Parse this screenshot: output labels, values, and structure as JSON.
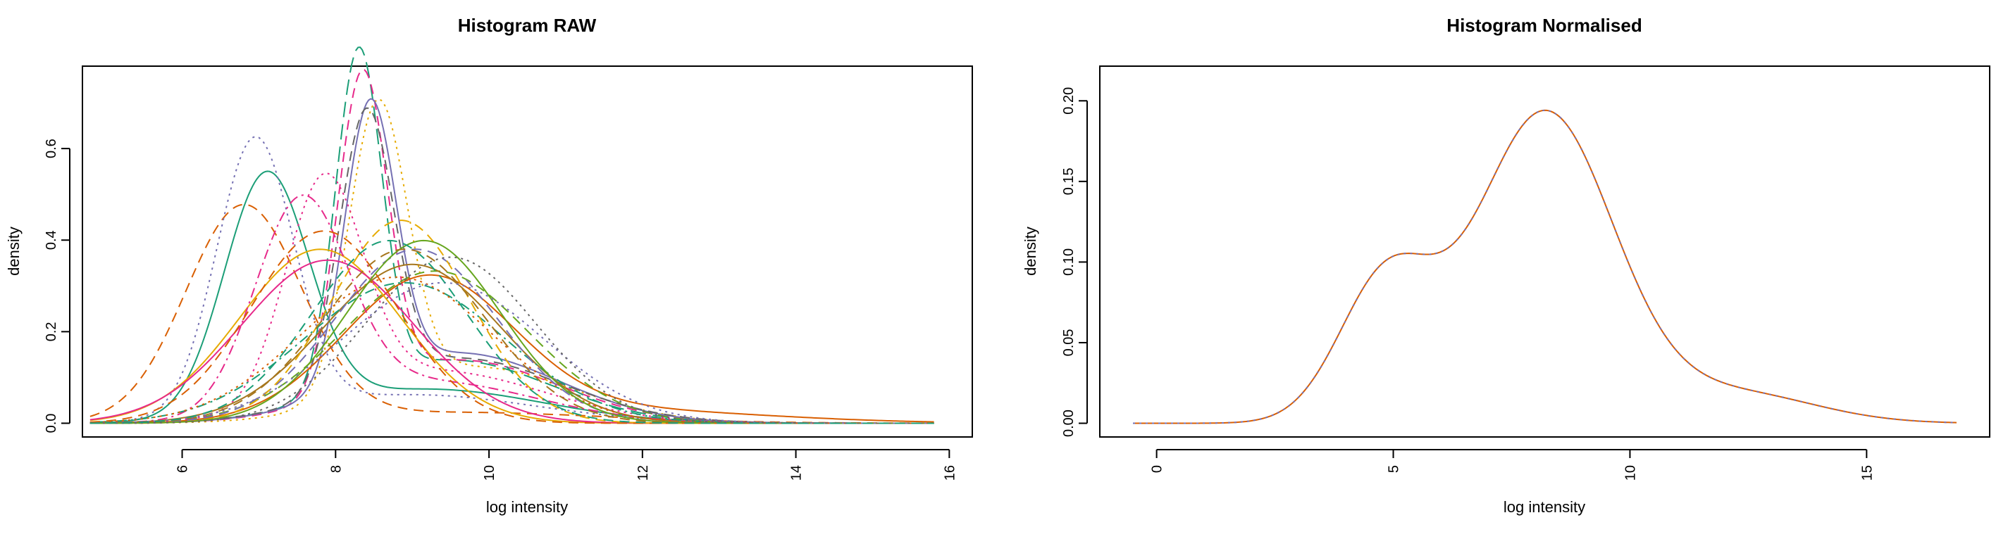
{
  "chart_data": [
    {
      "type": "line",
      "title": "Histogram RAW",
      "xlabel": "log intensity",
      "ylabel": "density",
      "xlim": [
        4.7,
        16.3
      ],
      "ylim": [
        -0.03,
        0.78
      ],
      "xticks": [
        "6",
        "8",
        "10",
        "12",
        "14",
        "16"
      ],
      "yticks": [
        "0.0",
        "0.2",
        "0.4",
        "0.6"
      ],
      "grid": false,
      "legend": "none",
      "x_support": [
        4.8,
        15.8
      ],
      "series": [
        {
          "color": "#1B9E77",
          "dash": "solid",
          "components": [
            {
              "mu": 7.1,
              "sigma": 0.55,
              "w": 0.72
            },
            {
              "mu": 9.2,
              "sigma": 1.5,
              "w": 0.28
            }
          ]
        },
        {
          "color": "#D95F02",
          "dash": "dashed",
          "components": [
            {
              "mu": 6.8,
              "sigma": 0.75,
              "w": 0.88
            },
            {
              "mu": 9.5,
              "sigma": 2.0,
              "w": 0.12
            }
          ]
        },
        {
          "color": "#7570B3",
          "dash": "dotted",
          "components": [
            {
              "mu": 6.95,
              "sigma": 0.5,
              "w": 0.75
            },
            {
              "mu": 9.0,
              "sigma": 1.6,
              "w": 0.25
            }
          ]
        },
        {
          "color": "#1B9E77",
          "dash": "longdash",
          "components": [
            {
              "mu": 8.3,
              "sigma": 0.3,
              "w": 0.55
            },
            {
              "mu": 9.5,
              "sigma": 1.3,
              "w": 0.45
            }
          ]
        },
        {
          "color": "#E7298A",
          "dash": "dashed",
          "components": [
            {
              "mu": 8.35,
              "sigma": 0.32,
              "w": 0.55
            },
            {
              "mu": 9.6,
              "sigma": 1.3,
              "w": 0.45
            }
          ]
        },
        {
          "color": "#E6AB02",
          "dash": "dotted",
          "components": [
            {
              "mu": 8.55,
              "sigma": 0.38,
              "w": 0.6
            },
            {
              "mu": 9.8,
              "sigma": 1.3,
              "w": 0.4
            }
          ]
        },
        {
          "color": "#7570B3",
          "dash": "solid",
          "components": [
            {
              "mu": 8.45,
              "sigma": 0.33,
              "w": 0.5
            },
            {
              "mu": 9.6,
              "sigma": 1.3,
              "w": 0.5
            }
          ]
        },
        {
          "color": "#666666",
          "dash": "dashed",
          "components": [
            {
              "mu": 8.4,
              "sigma": 0.35,
              "w": 0.52
            },
            {
              "mu": 9.6,
              "sigma": 1.35,
              "w": 0.48
            }
          ]
        },
        {
          "color": "#D95F02",
          "dash": "solid",
          "components": [
            {
              "mu": 9.2,
              "sigma": 1.1,
              "w": 0.85
            },
            {
              "mu": 11.5,
              "sigma": 2.0,
              "w": 0.15
            }
          ]
        },
        {
          "color": "#66A61E",
          "dash": "dashed",
          "components": [
            {
              "mu": 9.3,
              "sigma": 1.2,
              "w": 1.0
            }
          ]
        },
        {
          "color": "#E6AB02",
          "dash": "solid",
          "components": [
            {
              "mu": 7.8,
              "sigma": 1.05,
              "w": 1.0
            }
          ]
        },
        {
          "color": "#E7298A",
          "dash": "solid",
          "components": [
            {
              "mu": 7.9,
              "sigma": 1.12,
              "w": 1.0
            }
          ]
        },
        {
          "color": "#E7298A",
          "dash": "dotdash",
          "components": [
            {
              "mu": 7.55,
              "sigma": 0.6,
              "w": 0.68
            },
            {
              "mu": 9.2,
              "sigma": 1.4,
              "w": 0.32
            }
          ]
        },
        {
          "color": "#E7298A",
          "dash": "dotted",
          "components": [
            {
              "mu": 7.85,
              "sigma": 0.5,
              "w": 0.6
            },
            {
              "mu": 9.3,
              "sigma": 1.4,
              "w": 0.4
            }
          ]
        },
        {
          "color": "#A6761D",
          "dash": "solid",
          "components": [
            {
              "mu": 9.0,
              "sigma": 1.15,
              "w": 1.0
            }
          ]
        },
        {
          "color": "#1B9E77",
          "dash": "dotdash",
          "components": [
            {
              "mu": 8.9,
              "sigma": 1.3,
              "w": 1.0
            }
          ]
        },
        {
          "color": "#D95F02",
          "dash": "dotted",
          "components": [
            {
              "mu": 8.8,
              "sigma": 1.25,
              "w": 1.0
            }
          ]
        },
        {
          "color": "#7570B3",
          "dash": "dashed",
          "components": [
            {
              "mu": 9.05,
              "sigma": 1.05,
              "w": 1.0
            }
          ]
        },
        {
          "color": "#E6AB02",
          "dash": "dashed",
          "components": [
            {
              "mu": 8.85,
              "sigma": 0.9,
              "w": 1.0
            }
          ]
        },
        {
          "color": "#66A61E",
          "dash": "solid",
          "components": [
            {
              "mu": 9.15,
              "sigma": 1.0,
              "w": 1.0
            }
          ]
        },
        {
          "color": "#D95F02",
          "dash": "dashed",
          "components": [
            {
              "mu": 7.85,
              "sigma": 0.95,
              "w": 1.0
            }
          ]
        },
        {
          "color": "#A6761D",
          "dash": "dashed",
          "components": [
            {
              "mu": 8.9,
              "sigma": 1.05,
              "w": 1.0
            }
          ]
        },
        {
          "color": "#7570B3",
          "dash": "dotted",
          "components": [
            {
              "mu": 9.4,
              "sigma": 1.3,
              "w": 1.0
            }
          ]
        },
        {
          "color": "#666666",
          "dash": "dotted",
          "components": [
            {
              "mu": 9.5,
              "sigma": 1.1,
              "w": 1.0
            }
          ]
        },
        {
          "color": "#1B9E77",
          "dash": "dashed",
          "components": [
            {
              "mu": 8.7,
              "sigma": 1.0,
              "w": 1.0
            }
          ]
        }
      ]
    },
    {
      "type": "line",
      "title": "Histogram Normalised",
      "xlabel": "log intensity",
      "ylabel": "density",
      "xlim": [
        -1.2,
        17.6
      ],
      "ylim": [
        -0.0085,
        0.2215
      ],
      "xticks": [
        "0",
        "5",
        "10",
        "15"
      ],
      "yticks": [
        "0.00",
        "0.05",
        "0.10",
        "0.15",
        "0.20"
      ],
      "grid": false,
      "legend": "none",
      "x_support": [
        -0.5,
        16.9
      ],
      "series": [
        {
          "color": "#D95F02",
          "dash": "solid",
          "components": [
            {
              "mu": 4.85,
              "sigma": 1.0,
              "w": 0.22
            },
            {
              "mu": 8.2,
              "sigma": 1.45,
              "w": 0.7
            },
            {
              "mu": 12.2,
              "sigma": 1.7,
              "w": 0.08
            }
          ]
        },
        {
          "color": "#7570B3",
          "dash": "dotted",
          "components": [
            {
              "mu": 4.85,
              "sigma": 1.0,
              "w": 0.22
            },
            {
              "mu": 8.2,
              "sigma": 1.45,
              "w": 0.7
            },
            {
              "mu": 12.2,
              "sigma": 1.7,
              "w": 0.08
            }
          ]
        }
      ]
    }
  ]
}
